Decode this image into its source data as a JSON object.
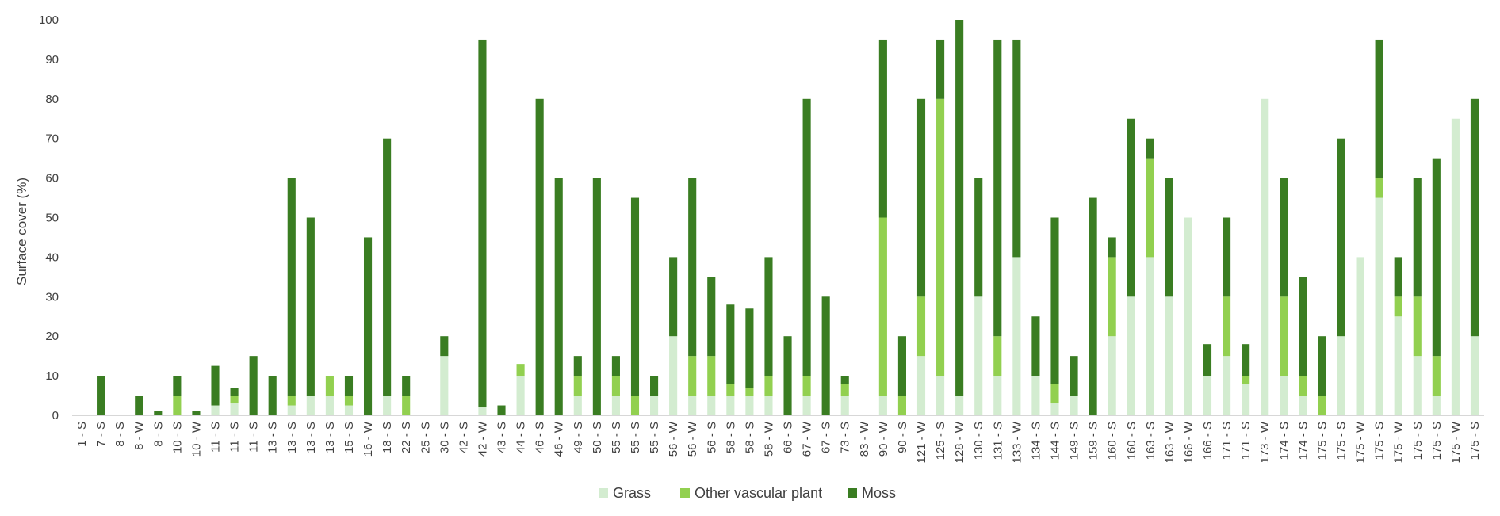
{
  "chart_data": {
    "type": "bar",
    "stacked": true,
    "title": "",
    "xlabel": "",
    "ylabel": "Surface cover (%)",
    "ylim": [
      0,
      100
    ],
    "yticks": [
      0,
      10,
      20,
      30,
      40,
      50,
      60,
      70,
      80,
      90,
      100
    ],
    "grid": false,
    "legend_position": "bottom",
    "categories": [
      "1 - S",
      "7 - S",
      "8 - S",
      "8 - W",
      "8 - S",
      "10 - S",
      "10 - W",
      "11 - S",
      "11 - S",
      "11 - S",
      "13 - S",
      "13 - S",
      "13 - S",
      "13 - S",
      "15 - S",
      "16 - W",
      "18 - S",
      "22 - S",
      "25 - S",
      "30 - S",
      "42 - S",
      "42 - W",
      "43 - S",
      "44 - S",
      "46 - S",
      "46 - W",
      "49 - S",
      "50 - S",
      "55 - S",
      "55 - S",
      "55 - S",
      "56 - W",
      "56 - W",
      "56 - S",
      "58 - S",
      "58 - S",
      "58 - W",
      "66 - S",
      "67 - W",
      "67 - S",
      "73 - S",
      "83 - W",
      "90 - W",
      "90 - S",
      "121 - W",
      "125 - S",
      "128 - W",
      "130 - S",
      "131 - S",
      "133 - W",
      "134 - S",
      "144 - S",
      "149 - S",
      "159 - S",
      "160 - S",
      "160 - S",
      "163 - S",
      "163 - W",
      "166 - W",
      "166 - S",
      "171 - S",
      "171 - S",
      "173 - W",
      "174 - S",
      "174 - S",
      "175 - S",
      "175 - S",
      "175 - W",
      "175 - S",
      "175 - W",
      "175 - S",
      "175 - S",
      "175 - W",
      "175 - S"
    ],
    "series": [
      {
        "name": "Grass",
        "color": "#d3ecd0",
        "values": [
          0,
          0,
          0,
          0,
          0,
          0,
          0,
          2.5,
          3,
          0,
          0,
          2.5,
          5,
          5,
          2.5,
          0,
          5,
          0,
          0,
          15,
          0,
          2,
          0,
          10,
          0,
          0,
          5,
          0,
          5,
          0,
          5,
          20,
          5,
          5,
          5,
          5,
          5,
          0,
          5,
          0,
          5,
          0,
          5,
          0,
          15,
          10,
          5,
          30,
          10,
          40,
          10,
          3,
          5,
          0,
          20,
          30,
          40,
          30,
          50,
          10,
          15,
          8,
          80,
          10,
          5,
          0,
          20,
          40,
          55,
          25,
          15,
          5,
          75,
          20
        ]
      },
      {
        "name": "Other vascular plant",
        "color": "#92d050",
        "values": [
          0,
          0,
          0,
          0,
          0,
          5,
          0,
          0,
          2,
          0,
          0,
          2.5,
          0,
          5,
          2.5,
          0,
          0,
          5,
          0,
          0,
          0,
          0,
          0,
          3,
          0,
          0,
          5,
          0,
          5,
          5,
          0,
          0,
          10,
          10,
          3,
          2,
          5,
          0,
          5,
          0,
          3,
          0,
          45,
          5,
          15,
          70,
          0,
          0,
          10,
          0,
          0,
          5,
          0,
          0,
          20,
          0,
          25,
          0,
          0,
          0,
          15,
          2,
          0,
          20,
          5,
          5,
          0,
          0,
          5,
          5,
          15,
          10,
          0,
          0
        ]
      },
      {
        "name": "Moss",
        "color": "#3a7d22",
        "values": [
          0,
          10,
          0,
          5,
          1,
          5,
          1,
          10,
          2,
          15,
          10,
          55,
          45,
          0,
          5,
          45,
          65,
          5,
          0,
          5,
          0,
          93,
          2.5,
          0,
          80,
          60,
          5,
          60,
          5,
          50,
          5,
          20,
          45,
          20,
          20,
          20,
          30,
          20,
          70,
          30,
          2,
          0,
          45,
          15,
          50,
          15,
          95,
          30,
          75,
          55,
          15,
          42,
          10,
          55,
          5,
          45,
          5,
          30,
          0,
          8,
          20,
          8,
          0,
          30,
          25,
          15,
          50,
          0,
          35,
          10,
          30,
          50,
          0,
          60
        ]
      }
    ]
  }
}
